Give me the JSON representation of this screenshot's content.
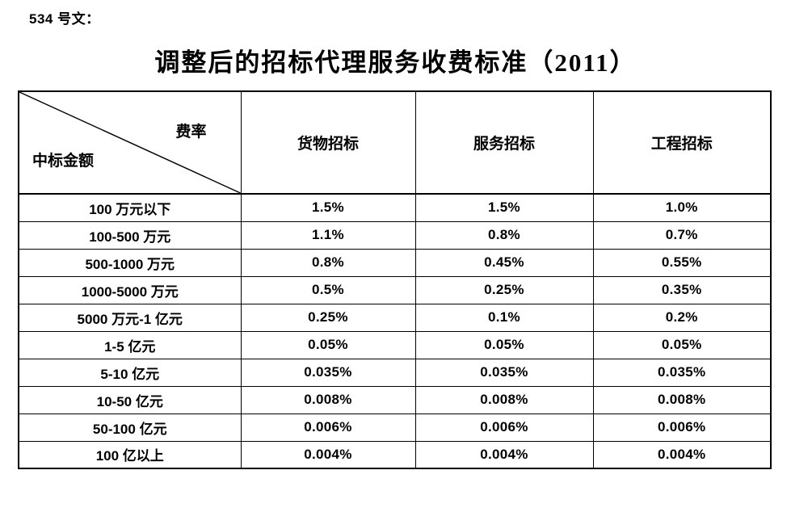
{
  "page": {
    "doc_label": "534 号文：",
    "title": "调整后的招标代理服务收费标准（2011）"
  },
  "table": {
    "corner": {
      "top_right": "费率",
      "bottom_left": "中标金额"
    },
    "columns": [
      "货物招标",
      "服务招标",
      "工程招标"
    ],
    "rows": [
      {
        "label": "100 万元以下",
        "values": [
          "1.5%",
          "1.5%",
          "1.0%"
        ]
      },
      {
        "label": "100-500 万元",
        "values": [
          "1.1%",
          "0.8%",
          "0.7%"
        ]
      },
      {
        "label": "500-1000 万元",
        "values": [
          "0.8%",
          "0.45%",
          "0.55%"
        ]
      },
      {
        "label": "1000-5000 万元",
        "values": [
          "0.5%",
          "0.25%",
          "0.35%"
        ]
      },
      {
        "label": "5000 万元-1 亿元",
        "values": [
          "0.25%",
          "0.1%",
          "0.2%"
        ]
      },
      {
        "label": "1-5 亿元",
        "values": [
          "0.05%",
          "0.05%",
          "0.05%"
        ]
      },
      {
        "label": "5-10 亿元",
        "values": [
          "0.035%",
          "0.035%",
          "0.035%"
        ]
      },
      {
        "label": "10-50 亿元",
        "values": [
          "0.008%",
          "0.008%",
          "0.008%"
        ]
      },
      {
        "label": "50-100 亿元",
        "values": [
          "0.006%",
          "0.006%",
          "0.006%"
        ]
      },
      {
        "label": "100 亿以上",
        "values": [
          "0.004%",
          "0.004%",
          "0.004%"
        ]
      }
    ]
  },
  "colors": {
    "text": "#000000",
    "border": "#000000",
    "background": "#ffffff"
  }
}
